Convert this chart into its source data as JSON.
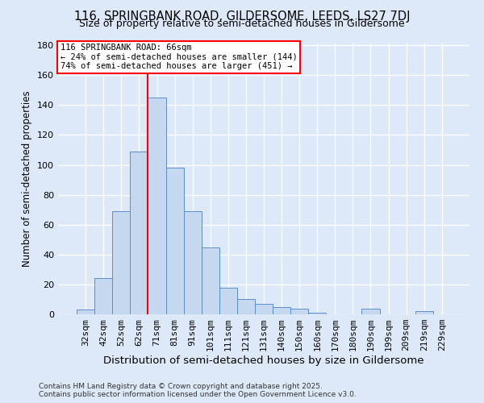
{
  "title": "116, SPRINGBANK ROAD, GILDERSOME, LEEDS, LS27 7DJ",
  "subtitle": "Size of property relative to semi-detached houses in Gildersome",
  "xlabel": "Distribution of semi-detached houses by size in Gildersome",
  "ylabel": "Number of semi-detached properties",
  "bar_labels": [
    "32sqm",
    "42sqm",
    "52sqm",
    "62sqm",
    "71sqm",
    "81sqm",
    "91sqm",
    "101sqm",
    "111sqm",
    "121sqm",
    "131sqm",
    "140sqm",
    "150sqm",
    "160sqm",
    "170sqm",
    "180sqm",
    "190sqm",
    "199sqm",
    "209sqm",
    "219sqm",
    "229sqm"
  ],
  "bar_values": [
    3,
    24,
    69,
    109,
    145,
    98,
    69,
    45,
    18,
    10,
    7,
    5,
    4,
    1,
    0,
    0,
    4,
    0,
    0,
    2,
    0
  ],
  "bar_color": "#c5d8f0",
  "bar_edge_color": "#5b8fc8",
  "property_line_color": "red",
  "annotation_title": "116 SPRINGBANK ROAD: 66sqm",
  "annotation_line1": "← 24% of semi-detached houses are smaller (144)",
  "annotation_line2": "74% of semi-detached houses are larger (451) →",
  "annotation_box_color": "white",
  "annotation_box_edge_color": "red",
  "background_color": "#dde8f8",
  "grid_color": "white",
  "ylim": [
    0,
    182
  ],
  "yticks": [
    0,
    20,
    40,
    60,
    80,
    100,
    120,
    140,
    160,
    180
  ],
  "footer1": "Contains HM Land Registry data © Crown copyright and database right 2025.",
  "footer2": "Contains public sector information licensed under the Open Government Licence v3.0.",
  "title_fontsize": 10.5,
  "subtitle_fontsize": 9.0,
  "xlabel_fontsize": 9.5,
  "ylabel_fontsize": 8.5,
  "tick_fontsize": 8.0,
  "annot_fontsize": 7.5,
  "footer_fontsize": 6.5
}
